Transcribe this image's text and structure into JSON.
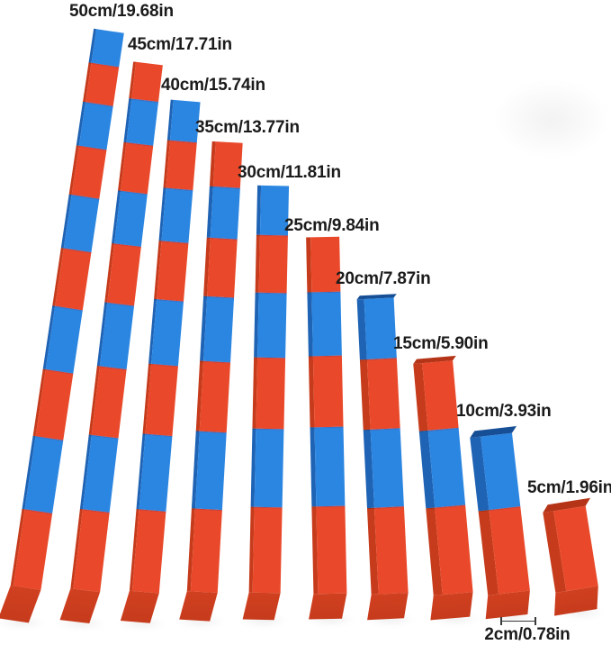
{
  "colors": {
    "red": "#e9492a",
    "red_side": "#c63b1c",
    "red_end": "#d04020",
    "red_cap": "#b53418",
    "blue": "#2b86e1",
    "blue_side": "#1f63b5",
    "blue_cap": "#164f96",
    "label_text": "#1b1b1b"
  },
  "rods": [
    {
      "label": "50cm/19.68in",
      "length_cm": 50,
      "length_in": 19.68,
      "segments": [
        "blue",
        "red",
        "blue",
        "red",
        "blue",
        "red",
        "blue",
        "red",
        "blue",
        "red"
      ]
    },
    {
      "label": "45cm/17.71in",
      "length_cm": 45,
      "length_in": 17.71,
      "segments": [
        "red",
        "blue",
        "red",
        "blue",
        "red",
        "blue",
        "red",
        "blue",
        "red"
      ]
    },
    {
      "label": "40cm/15.74in",
      "length_cm": 40,
      "length_in": 15.74,
      "segments": [
        "blue",
        "red",
        "blue",
        "red",
        "blue",
        "red",
        "blue",
        "red"
      ]
    },
    {
      "label": "35cm/13.77in",
      "length_cm": 35,
      "length_in": 13.77,
      "segments": [
        "red",
        "blue",
        "red",
        "blue",
        "red",
        "blue",
        "red"
      ]
    },
    {
      "label": "30cm/11.81in",
      "length_cm": 30,
      "length_in": 11.81,
      "segments": [
        "blue",
        "red",
        "blue",
        "red",
        "blue",
        "red"
      ]
    },
    {
      "label": "25cm/9.84in",
      "length_cm": 25,
      "length_in": 9.84,
      "segments": [
        "red",
        "blue",
        "red",
        "blue",
        "red"
      ]
    },
    {
      "label": "20cm/7.87in",
      "length_cm": 20,
      "length_in": 7.87,
      "segments": [
        "blue",
        "red",
        "blue",
        "red"
      ]
    },
    {
      "label": "15cm/5.90in",
      "length_cm": 15,
      "length_in": 5.9,
      "segments": [
        "red",
        "blue",
        "red"
      ]
    },
    {
      "label": "10cm/3.93in",
      "length_cm": 10,
      "length_in": 3.93,
      "segments": [
        "blue",
        "red"
      ]
    },
    {
      "label": "5cm/1.96in",
      "length_cm": 5,
      "length_in": 1.96,
      "segments": [
        "red"
      ]
    }
  ],
  "width_note": {
    "label": "2cm/0.78in",
    "width_cm": 2,
    "width_in": 0.78
  }
}
